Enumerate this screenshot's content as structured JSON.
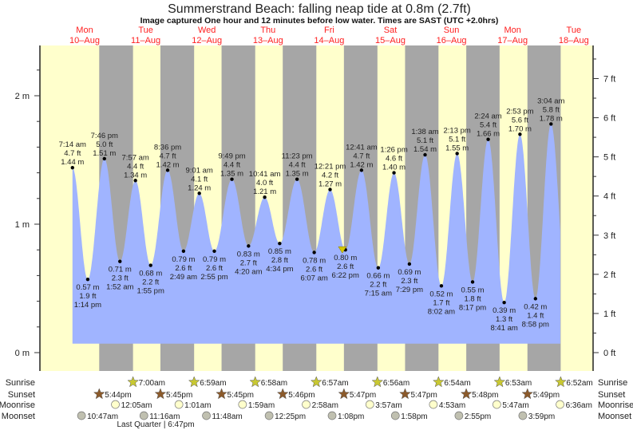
{
  "title": "Summerstrand Beach: falling  neap tide at 0.8m (2.7ft)",
  "subtitle": "Image captured One hour and 12 minutes before low water. Times are SAST (UTC +2.0hrs)",
  "colors": {
    "day": "#ffffcc",
    "night": "#a6a6a6",
    "water": "#a0b4ff",
    "date_label": "#ff2020",
    "sunrise": "#c8c832",
    "sunset": "#8b5a2b",
    "moonrise": "#ffffcc",
    "moonset": "#c0c0b0",
    "now_marker": "#d4c800"
  },
  "chart_data": {
    "type": "area",
    "title": "Summerstrand Beach: falling  neap tide at 0.8m (2.7ft)",
    "y_left": {
      "unit": "m",
      "ticks": [
        "0 m",
        "1 m",
        "2 m"
      ],
      "range": [
        -0.02,
        2.4
      ]
    },
    "y_right": {
      "unit": "ft",
      "ticks": [
        "0 ft",
        "1 ft",
        "2 ft",
        "3 ft",
        "4 ft",
        "5 ft",
        "6 ft",
        "7 ft"
      ]
    },
    "days": [
      {
        "name": "Mon",
        "date": "10–Aug"
      },
      {
        "name": "Tue",
        "date": "11–Aug"
      },
      {
        "name": "Wed",
        "date": "12–Aug"
      },
      {
        "name": "Thu",
        "date": "13–Aug"
      },
      {
        "name": "Fri",
        "date": "14–Aug"
      },
      {
        "name": "Sat",
        "date": "15–Aug"
      },
      {
        "name": "Sun",
        "date": "16–Aug"
      },
      {
        "name": "Mon",
        "date": "17–Aug"
      },
      {
        "name": "Tue",
        "date": "18–Aug"
      }
    ],
    "tides": [
      {
        "day": 0,
        "time": "7:14 am",
        "m": "1.44 m",
        "ft": "4.7 ft",
        "type": "high",
        "value": 1.44
      },
      {
        "day": 0,
        "time": "1:14 pm",
        "m": "0.57 m",
        "ft": "1.9 ft",
        "type": "low",
        "value": 0.57
      },
      {
        "day": 0,
        "time": "7:46 pm",
        "m": "1.51 m",
        "ft": "5.0 ft",
        "type": "high",
        "value": 1.51
      },
      {
        "day": 1,
        "time": "1:52 am",
        "m": "0.71 m",
        "ft": "2.3 ft",
        "type": "low",
        "value": 0.71
      },
      {
        "day": 1,
        "time": "7:57 am",
        "m": "1.34 m",
        "ft": "4.4 ft",
        "type": "high",
        "value": 1.34
      },
      {
        "day": 1,
        "time": "1:55 pm",
        "m": "0.68 m",
        "ft": "2.2 ft",
        "type": "low",
        "value": 0.68
      },
      {
        "day": 1,
        "time": "8:36 pm",
        "m": "1.42 m",
        "ft": "4.7 ft",
        "type": "high",
        "value": 1.42
      },
      {
        "day": 2,
        "time": "2:49 am",
        "m": "0.79 m",
        "ft": "2.6 ft",
        "type": "low",
        "value": 0.79
      },
      {
        "day": 2,
        "time": "9:01 am",
        "m": "1.24 m",
        "ft": "4.1 ft",
        "type": "high",
        "value": 1.24
      },
      {
        "day": 2,
        "time": "2:55 pm",
        "m": "0.79 m",
        "ft": "2.6 ft",
        "type": "low",
        "value": 0.79
      },
      {
        "day": 2,
        "time": "9:49 pm",
        "m": "1.35 m",
        "ft": "4.4 ft",
        "type": "high",
        "value": 1.35
      },
      {
        "day": 3,
        "time": "4:20 am",
        "m": "0.83 m",
        "ft": "2.7 ft",
        "type": "low",
        "value": 0.83
      },
      {
        "day": 3,
        "time": "10:41 am",
        "m": "1.21 m",
        "ft": "4.0 ft",
        "type": "high",
        "value": 1.21
      },
      {
        "day": 3,
        "time": "4:34 pm",
        "m": "0.85 m",
        "ft": "2.8 ft",
        "type": "low",
        "value": 0.85
      },
      {
        "day": 3,
        "time": "11:23 pm",
        "m": "1.35 m",
        "ft": "4.4 ft",
        "type": "high",
        "value": 1.35
      },
      {
        "day": 4,
        "time": "6:07 am",
        "m": "0.78 m",
        "ft": "2.6 ft",
        "type": "low",
        "value": 0.78
      },
      {
        "day": 4,
        "time": "12:21 pm",
        "m": "1.27 m",
        "ft": "4.2 ft",
        "type": "high",
        "value": 1.27
      },
      {
        "day": 4,
        "time": "6:22 pm",
        "m": "0.80 m",
        "ft": "2.6 ft",
        "type": "low",
        "value": 0.8
      },
      {
        "day": 5,
        "time": "12:41 am",
        "m": "1.42 m",
        "ft": "4.7 ft",
        "type": "high",
        "value": 1.42
      },
      {
        "day": 5,
        "time": "7:15 am",
        "m": "0.66 m",
        "ft": "2.2 ft",
        "type": "low",
        "value": 0.66
      },
      {
        "day": 5,
        "time": "1:26 pm",
        "m": "1.40 m",
        "ft": "4.6 ft",
        "type": "high",
        "value": 1.4
      },
      {
        "day": 5,
        "time": "7:29 pm",
        "m": "0.69 m",
        "ft": "2.3 ft",
        "type": "low",
        "value": 0.69
      },
      {
        "day": 6,
        "time": "1:38 am",
        "m": "1.54 m",
        "ft": "5.1 ft",
        "type": "high",
        "value": 1.54
      },
      {
        "day": 6,
        "time": "8:02 am",
        "m": "0.52 m",
        "ft": "1.7 ft",
        "type": "low",
        "value": 0.52
      },
      {
        "day": 6,
        "time": "2:13 pm",
        "m": "1.55 m",
        "ft": "5.1 ft",
        "type": "high",
        "value": 1.55
      },
      {
        "day": 6,
        "time": "8:17 pm",
        "m": "0.55 m",
        "ft": "1.8 ft",
        "type": "low",
        "value": 0.55
      },
      {
        "day": 7,
        "time": "2:24 am",
        "m": "1.66 m",
        "ft": "5.4 ft",
        "type": "high",
        "value": 1.66
      },
      {
        "day": 7,
        "time": "8:41 am",
        "m": "0.39 m",
        "ft": "1.3 ft",
        "type": "low",
        "value": 0.39
      },
      {
        "day": 7,
        "time": "2:53 pm",
        "m": "1.70 m",
        "ft": "5.6 ft",
        "type": "high",
        "value": 1.7
      },
      {
        "day": 7,
        "time": "8:58 pm",
        "m": "0.42 m",
        "ft": "1.4 ft",
        "type": "low",
        "value": 0.42
      },
      {
        "day": 8,
        "time": "3:04 am",
        "m": "1.78 m",
        "ft": "5.8 ft",
        "type": "high",
        "value": 1.78
      }
    ],
    "current": {
      "day": 4,
      "time": "5:10 pm",
      "value": 0.8
    }
  },
  "almanac": {
    "labels": {
      "sunrise": "Sunrise",
      "sunset": "Sunset",
      "moonrise": "Moonrise",
      "moonset": "Moonset"
    },
    "sunrise": [
      {
        "day": 1,
        "time": "7:00am"
      },
      {
        "day": 2,
        "time": "6:59am"
      },
      {
        "day": 3,
        "time": "6:58am"
      },
      {
        "day": 4,
        "time": "6:57am"
      },
      {
        "day": 5,
        "time": "6:56am"
      },
      {
        "day": 6,
        "time": "6:54am"
      },
      {
        "day": 7,
        "time": "6:53am"
      },
      {
        "day": 8,
        "time": "6:52am"
      }
    ],
    "sunset": [
      {
        "day": 0,
        "time": "5:44pm"
      },
      {
        "day": 1,
        "time": "5:45pm"
      },
      {
        "day": 2,
        "time": "5:45pm"
      },
      {
        "day": 3,
        "time": "5:46pm"
      },
      {
        "day": 4,
        "time": "5:47pm"
      },
      {
        "day": 5,
        "time": "5:47pm"
      },
      {
        "day": 6,
        "time": "5:48pm"
      },
      {
        "day": 7,
        "time": "5:49pm"
      }
    ],
    "moonrise": [
      {
        "day": 1,
        "time": "12:05am"
      },
      {
        "day": 2,
        "time": "1:01am"
      },
      {
        "day": 3,
        "time": "1:59am"
      },
      {
        "day": 4,
        "time": "2:58am"
      },
      {
        "day": 5,
        "time": "3:57am"
      },
      {
        "day": 6,
        "time": "4:53am"
      },
      {
        "day": 7,
        "time": "5:47am"
      },
      {
        "day": 8,
        "time": "6:36am"
      }
    ],
    "moonset": [
      {
        "day": 0,
        "time": "10:47am"
      },
      {
        "day": 1,
        "time": "11:16am"
      },
      {
        "day": 2,
        "time": "11:48am"
      },
      {
        "day": 3,
        "time": "12:25pm"
      },
      {
        "day": 4,
        "time": "1:08pm"
      },
      {
        "day": 5,
        "time": "1:58pm"
      },
      {
        "day": 6,
        "time": "2:55pm"
      },
      {
        "day": 7,
        "time": "3:59pm"
      }
    ],
    "moon_phase": {
      "day": 1,
      "time": "6:47pm",
      "label": "Last Quarter | 6:47pm"
    }
  }
}
